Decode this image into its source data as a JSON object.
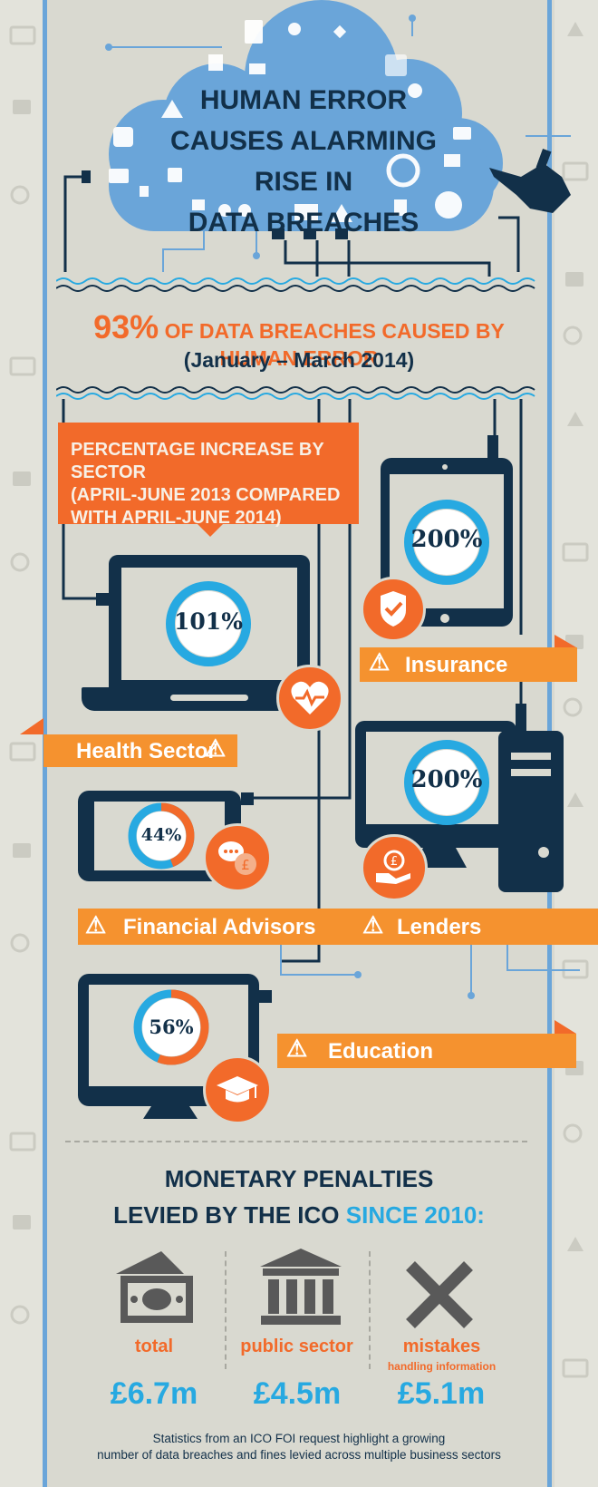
{
  "header": {
    "title_lines": [
      "HUMAN ERROR",
      "CAUSES ALARMING RISE IN",
      "DATA BREACHES"
    ]
  },
  "stat": {
    "percent": "93%",
    "text": " OF DATA BREACHES CAUSED BY HUMAN ERROR",
    "period": "(January – March 2014)"
  },
  "sector_box": {
    "lines": [
      "PERCENTAGE INCREASE BY SECTOR",
      "(APRIL-JUNE 2013 COMPARED",
      "WITH APRIL-JUNE 2014)"
    ]
  },
  "sectors": [
    {
      "name": "Insurance",
      "value": "200%",
      "pct": 200,
      "icon": "shield-check-icon"
    },
    {
      "name": "Health Sector",
      "value": "101%",
      "pct": 101,
      "icon": "heart-icon"
    },
    {
      "name": "Lenders",
      "value": "200%",
      "pct": 200,
      "icon": "pound-hand-icon"
    },
    {
      "name": "Financial Advisors",
      "value": "44%",
      "pct": 44,
      "icon": "speech-bubble-icon"
    },
    {
      "name": "Education",
      "value": "56%",
      "pct": 56,
      "icon": "graduation-cap-icon"
    }
  ],
  "penalties": {
    "title_line1": "MONETARY PENALTIES",
    "title_line2_a": "LEVIED BY THE ICO ",
    "title_line2_b": "SINCE 2010:",
    "items": [
      {
        "label": "total",
        "sub": "",
        "amount": "£6.7m",
        "icon": "money-icon"
      },
      {
        "label": "public sector",
        "sub": "",
        "amount": "£4.5m",
        "icon": "building-icon"
      },
      {
        "label": "mistakes",
        "sub": "handling information",
        "amount": "£5.1m",
        "icon": "cross-icon"
      }
    ]
  },
  "footer": {
    "line1": "Statistics from an ICO FOI request highlight a growing",
    "line2": "number of data breaches and fines levied across multiple business sectors"
  },
  "colors": {
    "navy": "#123049",
    "orange": "#f26a2a",
    "light_orange": "#f5922f",
    "blue": "#27a9e1",
    "cloud": "#6aa5d9",
    "background": "#d9d9d0"
  }
}
